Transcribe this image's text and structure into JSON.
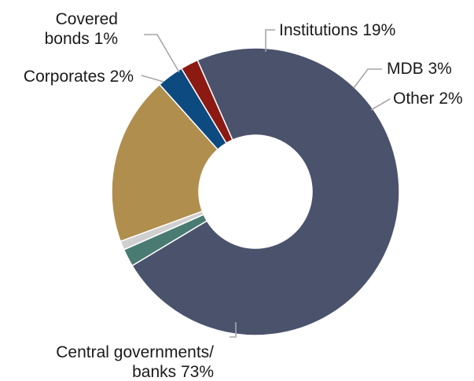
{
  "chart_data": {
    "type": "pie",
    "variant": "donut",
    "title": "",
    "legend": "none",
    "slices": [
      {
        "name": "Other",
        "value": 2,
        "label_lines": [
          "Other 2%"
        ],
        "color": "#8b1a12"
      },
      {
        "name": "Central governments/ banks",
        "value": 73,
        "label_lines": [
          "Central governments/",
          "banks 73%"
        ],
        "color": "#4a526c"
      },
      {
        "name": "Corporates",
        "value": 2,
        "label_lines": [
          "Corporates 2%"
        ],
        "color": "#4a7b73"
      },
      {
        "name": "Covered bonds",
        "value": 1,
        "label_lines": [
          "Covered",
          "bonds 1%"
        ],
        "color": "#cfcfcf"
      },
      {
        "name": "Institutions",
        "value": 19,
        "label_lines": [
          "Institutions 19%"
        ],
        "color": "#b08e4d"
      },
      {
        "name": "MDB",
        "value": 3,
        "label_lines": [
          "MDB 3%"
        ],
        "color": "#0d4a80"
      }
    ]
  }
}
